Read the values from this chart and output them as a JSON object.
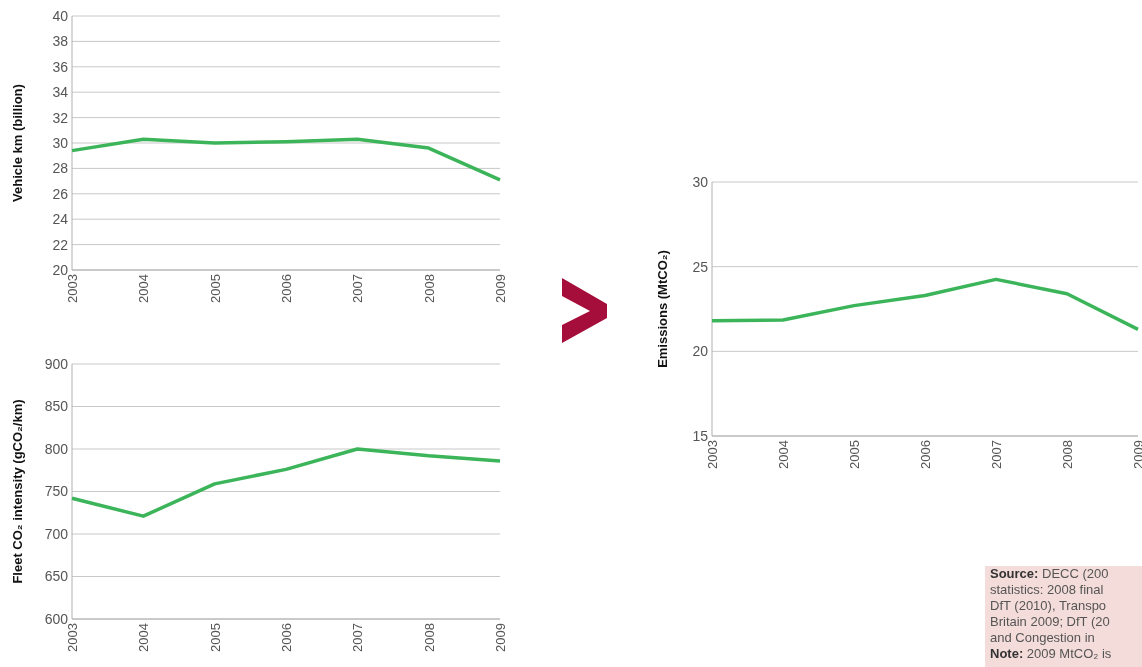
{
  "chart_data": [
    {
      "type": "line",
      "ylabel": "Vehicle km (billion)",
      "categories": [
        "2003",
        "2004",
        "2005",
        "2006",
        "2007",
        "2008",
        "2009"
      ],
      "series": [
        {
          "color": "#3cb55a",
          "values": [
            29.4,
            30.3,
            30.0,
            30.1,
            30.3,
            29.6,
            27.1
          ]
        }
      ],
      "ylim": [
        20,
        40
      ],
      "yticks": [
        20,
        22,
        24,
        26,
        28,
        30,
        32,
        34,
        36,
        38,
        40
      ],
      "grid": "y"
    },
    {
      "type": "line",
      "ylabel": "Fleet CO₂ intensity (gCO₂/km)",
      "categories": [
        "2003",
        "2004",
        "2005",
        "2006",
        "2007",
        "2008",
        "2009"
      ],
      "series": [
        {
          "color": "#3cb55a",
          "values": [
            742,
            721,
            759,
            776,
            800,
            792,
            786
          ]
        }
      ],
      "ylim": [
        600,
        900
      ],
      "yticks": [
        600,
        650,
        700,
        750,
        800,
        850,
        900
      ],
      "grid": "y"
    },
    {
      "type": "line",
      "ylabel": "Emissions (MtCO₂)",
      "categories": [
        "2003",
        "2004",
        "2005",
        "2006",
        "2007",
        "2008",
        "2009"
      ],
      "series": [
        {
          "color": "#3cb55a",
          "values": [
            21.8,
            21.85,
            22.7,
            23.3,
            24.25,
            23.4,
            21.3
          ]
        }
      ],
      "ylim": [
        15,
        30
      ],
      "yticks": [
        15,
        20,
        25,
        30
      ],
      "grid": "y",
      "annotations": [
        "Source: DECC (200",
        "statistics: 2008 final",
        "DfT (2010), Transpo",
        "Britain 2009; DfT (20",
        "and Congestion in",
        "Note: 2009 MtCO₂ is"
      ]
    }
  ]
}
